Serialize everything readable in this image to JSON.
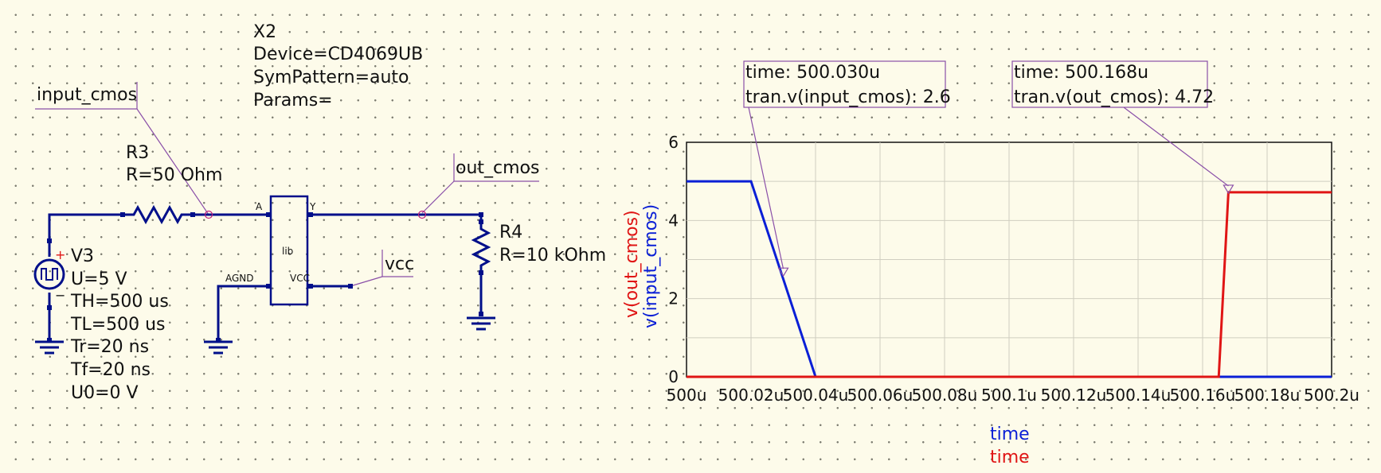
{
  "subcircuit": {
    "name": "X2",
    "device": "Device=CD4069UB",
    "sympattern": "SymPattern=auto",
    "params": "Params=",
    "body_label": "lib",
    "pins": {
      "a": "A",
      "y": "Y",
      "agnd": "AGND",
      "vcc": "VCC"
    }
  },
  "nodes": {
    "input": "input_cmos",
    "output": "out_cmos",
    "supply": "vcc"
  },
  "r3": {
    "name": "R3",
    "value": "R=50 Ohm"
  },
  "r4": {
    "name": "R4",
    "value": "R=10 kOhm"
  },
  "v3": {
    "name": "V3",
    "props": [
      "U=5 V",
      "TH=500 us",
      "TL=500 us",
      "Tr=20 ns",
      "Tf=20 ns",
      "U0=0 V"
    ]
  },
  "markers": [
    {
      "line1": "time: 500.030u",
      "line2": "tran.v(input_cmos): 2.6"
    },
    {
      "line1": "time: 500.168u",
      "line2": "tran.v(out_cmos): 4.72"
    }
  ],
  "colors": {
    "wire": "#000f8a",
    "input_trace": "#0a1fd6",
    "output_trace": "#e01515",
    "background": "#fdfbea"
  },
  "chart_data": {
    "type": "line",
    "xlabel": "time",
    "ylabels": [
      "v(out_cmos)",
      "v(input_cmos)"
    ],
    "xlabels_bottom": [
      "time",
      "time"
    ],
    "xlim": [
      500,
      500.2
    ],
    "ylim": [
      0,
      6
    ],
    "x_ticks": [
      "500u",
      "500.02u",
      "500.04u",
      "500.06u",
      "500.08u",
      "500.1u",
      "500.12u",
      "500.14u",
      "500.16u",
      "500.18u",
      "500.2u"
    ],
    "y_ticks": [
      "0",
      "2",
      "4",
      "6"
    ],
    "grid": true,
    "series": [
      {
        "name": "v(input_cmos)",
        "color": "#0a1fd6",
        "x": [
          500,
          500.02,
          500.04,
          500.2
        ],
        "y": [
          5,
          5,
          0,
          0
        ]
      },
      {
        "name": "v(out_cmos)",
        "color": "#e01515",
        "x": [
          500,
          500.165,
          500.168,
          500.2
        ],
        "y": [
          0,
          0,
          4.72,
          4.72
        ]
      }
    ],
    "marker_points": [
      {
        "x": 500.03,
        "y": 2.6,
        "series": 0
      },
      {
        "x": 500.168,
        "y": 4.72,
        "series": 1
      }
    ]
  }
}
